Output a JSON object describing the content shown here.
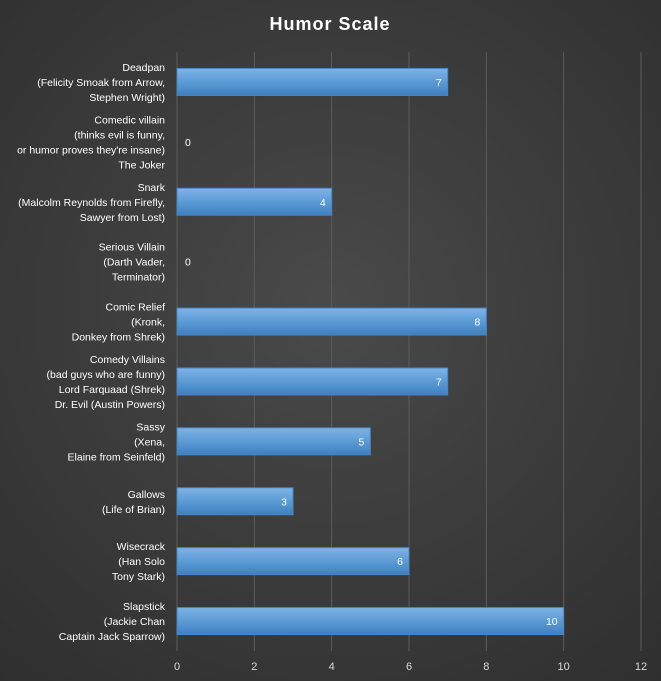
{
  "chart_data": {
    "type": "bar",
    "orientation": "horizontal",
    "title": "Humor  Scale",
    "categories": [
      [
        "Deadpan",
        "(Felicity Smoak from Arrow,",
        "Stephen Wright)"
      ],
      [
        "Comedic villain",
        "(thinks evil is funny,",
        "or humor proves they're insane)",
        "The Joker"
      ],
      [
        "Snark",
        "(Malcolm Reynolds from Firefly,",
        "Sawyer from Lost)"
      ],
      [
        "Serious Villain",
        "(Darth Vader,",
        "Terminator)"
      ],
      [
        "Comic Relief",
        "(Kronk,",
        "Donkey from Shrek)"
      ],
      [
        "Comedy Villains",
        "(bad guys who are funny)",
        "Lord Farquaad (Shrek)",
        "Dr. Evil (Austin Powers)"
      ],
      [
        "Sassy",
        "(Xena,",
        "Elaine from Seinfeld)"
      ],
      [
        "Gallows",
        "(Life of Brian)"
      ],
      [
        "Wisecrack",
        "(Han Solo",
        "Tony Stark)"
      ],
      [
        "Slapstick",
        "(Jackie Chan",
        "Captain Jack Sparrow)"
      ]
    ],
    "values": [
      7,
      0,
      4,
      0,
      8,
      7,
      5,
      3,
      6,
      10
    ],
    "xlim": [
      0,
      12
    ],
    "xticks": [
      0,
      2,
      4,
      6,
      8,
      10,
      12
    ],
    "grid": true,
    "legend": "none",
    "colors": {
      "bar": "#5b9bd5",
      "bar_light": "#7fb3e6",
      "bar_dark": "#3f7fc0",
      "bar_border": "#4a86c5",
      "gridline": "#5c5c5c",
      "text": "#ffffff",
      "tick": "#d9d9d9"
    }
  }
}
